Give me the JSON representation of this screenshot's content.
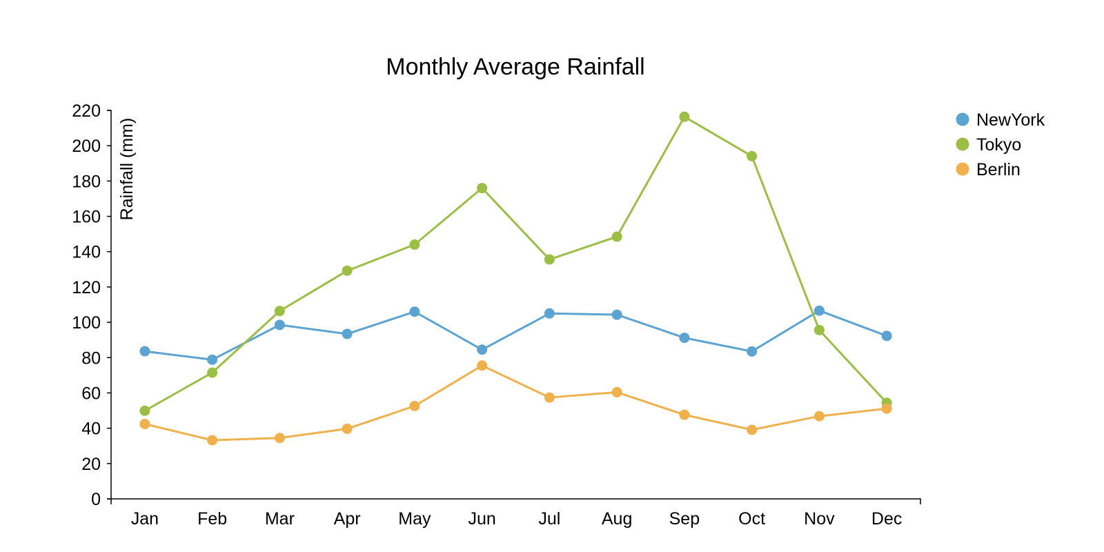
{
  "chart_data": {
    "type": "line",
    "title": "Monthly Average Rainfall",
    "xlabel": "",
    "ylabel": "Rainfall (mm)",
    "ylim": [
      0,
      220
    ],
    "yticks": [
      0,
      20,
      40,
      60,
      80,
      100,
      120,
      140,
      160,
      180,
      200,
      220
    ],
    "categories": [
      "Jan",
      "Feb",
      "Mar",
      "Apr",
      "May",
      "Jun",
      "Jul",
      "Aug",
      "Sep",
      "Oct",
      "Nov",
      "Dec"
    ],
    "grid": false,
    "legend": "top-right",
    "series": [
      {
        "name": "NewYork",
        "color": "#5ba3d0",
        "values": [
          83.6,
          78.8,
          98.5,
          93.4,
          106.0,
          84.5,
          105.0,
          104.3,
          91.2,
          83.5,
          106.6,
          92.3
        ]
      },
      {
        "name": "Tokyo",
        "color": "#9bbf44",
        "values": [
          49.9,
          71.5,
          106.4,
          129.2,
          144.0,
          176.0,
          135.6,
          148.5,
          216.4,
          194.1,
          95.6,
          54.4
        ]
      },
      {
        "name": "Berlin",
        "color": "#f0b04c",
        "values": [
          42.4,
          33.2,
          34.5,
          39.7,
          52.6,
          75.5,
          57.4,
          60.4,
          47.6,
          39.1,
          46.8,
          51.1
        ]
      }
    ]
  }
}
